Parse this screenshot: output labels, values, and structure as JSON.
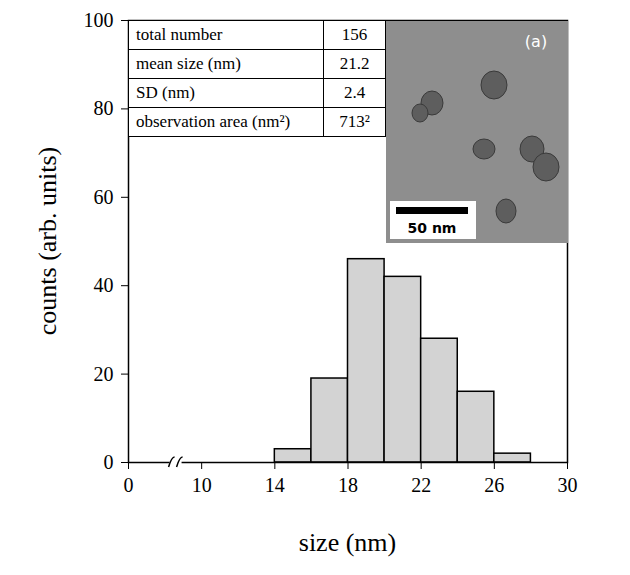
{
  "chart_data": {
    "type": "histogram",
    "bins": [
      14,
      16,
      18,
      20,
      22,
      24,
      26,
      28
    ],
    "values": [
      3,
      19,
      46,
      42,
      28,
      16,
      2
    ],
    "color": "#d3d3d3",
    "x_label": "size (nm)",
    "y_label": "counts (arb. units)",
    "xlim": [
      0,
      30
    ],
    "xticks": [
      0,
      10,
      14,
      18,
      22,
      26,
      30
    ],
    "ylim": [
      0,
      100
    ],
    "yticks": [
      0,
      20,
      40,
      60,
      80,
      100
    ],
    "grid": false,
    "inset_table": [
      [
        "total number",
        "156"
      ],
      [
        "mean size (nm)",
        "21.2"
      ],
      [
        "SD (nm)",
        "2.4"
      ],
      [
        "observation area (nm²)",
        "713²"
      ]
    ],
    "annotations": [
      "(a)",
      "50 nm"
    ]
  }
}
